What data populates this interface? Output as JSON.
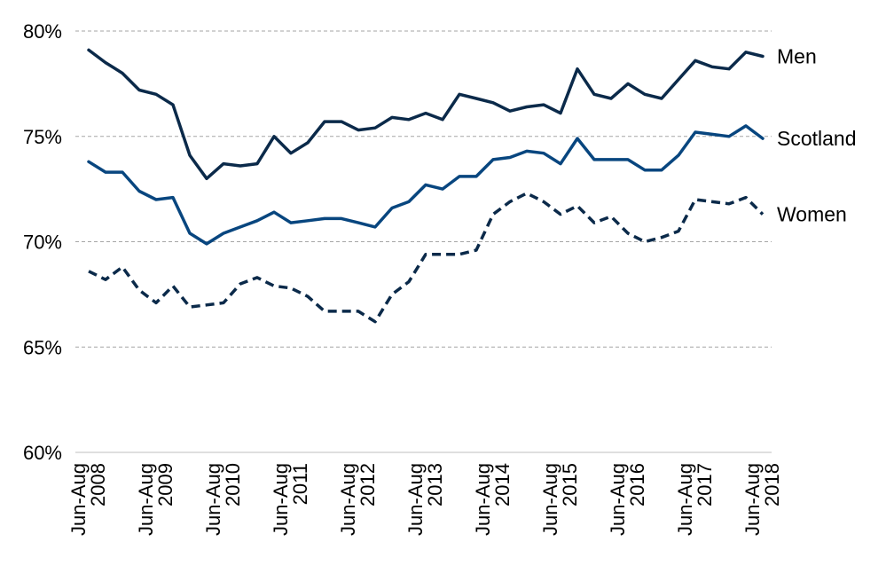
{
  "chart_data": {
    "type": "line",
    "x_count": 41,
    "xticks": [
      {
        "index": 0,
        "line1": "Jun-Aug",
        "line2": "2008"
      },
      {
        "index": 4,
        "line1": "Jun-Aug",
        "line2": "2009"
      },
      {
        "index": 8,
        "line1": "Jun-Aug",
        "line2": "2010"
      },
      {
        "index": 12,
        "line1": "Jun-Aug",
        "line2": "2011"
      },
      {
        "index": 16,
        "line1": "Jun-Aug",
        "line2": "2012"
      },
      {
        "index": 20,
        "line1": "Jun-Aug",
        "line2": "2013"
      },
      {
        "index": 24,
        "line1": "Jun-Aug",
        "line2": "2014"
      },
      {
        "index": 28,
        "line1": "Jun-Aug",
        "line2": "2015"
      },
      {
        "index": 32,
        "line1": "Jun-Aug",
        "line2": "2016"
      },
      {
        "index": 36,
        "line1": "Jun-Aug",
        "line2": "2017"
      },
      {
        "index": 40,
        "line1": "Jun-Aug",
        "line2": "2018"
      }
    ],
    "ylim": [
      60,
      80
    ],
    "yticks": [
      60,
      65,
      70,
      75,
      80
    ],
    "ytick_labels": [
      "60%",
      "65%",
      "70%",
      "75%",
      "80%"
    ],
    "grid": true,
    "series": [
      {
        "name": "Men",
        "color": "#0b2a4a",
        "dashed": false,
        "values": [
          79.1,
          78.5,
          78.0,
          77.2,
          77.0,
          76.5,
          74.1,
          73.0,
          73.7,
          73.6,
          73.7,
          75.0,
          74.2,
          74.7,
          75.7,
          75.7,
          75.3,
          75.4,
          75.9,
          75.8,
          76.1,
          75.8,
          77.0,
          76.8,
          76.6,
          76.2,
          76.4,
          76.5,
          76.1,
          78.2,
          77.0,
          76.8,
          77.5,
          77.0,
          76.8,
          77.7,
          78.6,
          78.3,
          78.2,
          79.0,
          78.8
        ]
      },
      {
        "name": "Scotland",
        "color": "#08467f",
        "dashed": false,
        "values": [
          73.8,
          73.3,
          73.3,
          72.4,
          72.0,
          72.1,
          70.4,
          69.9,
          70.4,
          70.7,
          71.0,
          71.4,
          70.9,
          71.0,
          71.1,
          71.1,
          70.9,
          70.7,
          71.6,
          71.9,
          72.7,
          72.5,
          73.1,
          73.1,
          73.9,
          74.0,
          74.3,
          74.2,
          73.7,
          74.9,
          73.9,
          73.9,
          73.9,
          73.4,
          73.4,
          74.1,
          75.2,
          75.1,
          75.0,
          75.5,
          74.9
        ]
      },
      {
        "name": "Women",
        "color": "#0b2a4a",
        "dashed": true,
        "values": [
          68.6,
          68.2,
          68.8,
          67.7,
          67.1,
          67.9,
          66.9,
          67.0,
          67.1,
          68.0,
          68.3,
          67.9,
          67.8,
          67.4,
          66.7,
          66.7,
          66.7,
          66.2,
          67.5,
          68.1,
          69.4,
          69.4,
          69.4,
          69.6,
          71.3,
          71.9,
          72.3,
          71.9,
          71.3,
          71.7,
          70.9,
          71.2,
          70.4,
          70.0,
          70.2,
          70.5,
          72.0,
          71.9,
          71.8,
          72.1,
          71.3
        ]
      }
    ]
  }
}
